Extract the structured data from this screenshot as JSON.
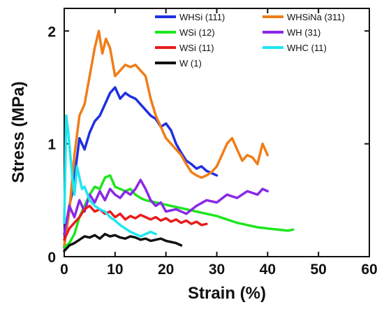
{
  "chart_data": {
    "type": "line",
    "xlabel": "Strain (%)",
    "ylabel": "Stress (MPa)",
    "xlim": [
      0,
      60
    ],
    "ylim": [
      0,
      2.2
    ],
    "xticks": [
      0,
      10,
      20,
      30,
      40,
      50,
      60
    ],
    "yticks": [
      0,
      1,
      2
    ],
    "grid": false,
    "legend_position": "top-right",
    "series": [
      {
        "name": "WHSi (111)",
        "color": "#1f2fe0",
        "x": [
          0,
          0.5,
          1,
          1.5,
          2,
          3,
          4,
          5,
          6,
          7,
          8,
          9,
          10,
          11,
          12,
          13,
          14,
          15,
          16,
          17,
          18,
          19,
          20,
          21,
          22,
          23,
          24,
          25,
          26,
          27,
          28,
          29,
          30
        ],
        "y": [
          0.08,
          0.3,
          0.45,
          0.55,
          0.7,
          1.05,
          0.95,
          1.1,
          1.2,
          1.25,
          1.35,
          1.45,
          1.5,
          1.4,
          1.45,
          1.42,
          1.4,
          1.35,
          1.3,
          1.25,
          1.22,
          1.15,
          1.18,
          1.12,
          1.0,
          0.92,
          0.85,
          0.82,
          0.78,
          0.8,
          0.76,
          0.74,
          0.72
        ]
      },
      {
        "name": "WHSiNa (311)",
        "color": "#f07d18",
        "x": [
          0,
          1,
          2,
          3,
          4,
          5,
          6,
          6.8,
          7.5,
          8.2,
          9,
          10,
          11,
          12,
          13,
          14,
          15,
          16,
          17,
          18,
          19,
          20,
          21,
          22,
          23,
          24,
          25,
          26,
          27,
          28,
          29,
          30,
          31,
          32,
          33,
          34,
          35,
          36,
          37,
          38,
          39,
          40
        ],
        "y": [
          0.1,
          0.4,
          0.9,
          1.25,
          1.35,
          1.6,
          1.85,
          2.0,
          1.8,
          1.93,
          1.85,
          1.6,
          1.65,
          1.7,
          1.68,
          1.7,
          1.65,
          1.6,
          1.4,
          1.25,
          1.15,
          1.05,
          1.0,
          0.95,
          0.9,
          0.82,
          0.75,
          0.72,
          0.7,
          0.72,
          0.75,
          0.8,
          0.9,
          1.0,
          1.05,
          0.95,
          0.85,
          0.9,
          0.88,
          0.82,
          1.0,
          0.9
        ]
      },
      {
        "name": "WSi (12)",
        "color": "#1ee61e",
        "x": [
          0,
          1,
          2,
          3,
          4,
          5,
          6,
          7,
          8,
          9,
          10,
          11,
          12,
          13,
          14,
          15,
          16,
          18,
          20,
          22,
          24,
          26,
          28,
          30,
          32,
          34,
          36,
          38,
          40,
          42,
          44,
          45
        ],
        "y": [
          0.08,
          0.12,
          0.2,
          0.35,
          0.45,
          0.55,
          0.62,
          0.6,
          0.7,
          0.72,
          0.62,
          0.6,
          0.58,
          0.6,
          0.55,
          0.52,
          0.5,
          0.48,
          0.46,
          0.44,
          0.42,
          0.4,
          0.38,
          0.36,
          0.33,
          0.3,
          0.28,
          0.26,
          0.25,
          0.24,
          0.23,
          0.24
        ]
      },
      {
        "name": "WH (31)",
        "color": "#8a28e8",
        "x": [
          0,
          1,
          2,
          3,
          4,
          5,
          6,
          7,
          8,
          9,
          10,
          11,
          12,
          13,
          14,
          15,
          16,
          17,
          18,
          19,
          20,
          22,
          24,
          26,
          28,
          30,
          32,
          34,
          36,
          38,
          39,
          40
        ],
        "y": [
          0.2,
          0.45,
          0.35,
          0.5,
          0.4,
          0.55,
          0.48,
          0.58,
          0.5,
          0.6,
          0.55,
          0.52,
          0.58,
          0.55,
          0.6,
          0.68,
          0.6,
          0.5,
          0.45,
          0.48,
          0.4,
          0.42,
          0.38,
          0.45,
          0.5,
          0.48,
          0.55,
          0.52,
          0.58,
          0.55,
          0.6,
          0.58
        ]
      },
      {
        "name": "WSi (11)",
        "color": "#e81c1c",
        "x": [
          0,
          1,
          2,
          3,
          4,
          5,
          6,
          7,
          8,
          9,
          10,
          11,
          12,
          13,
          14,
          15,
          16,
          17,
          18,
          19,
          20,
          21,
          22,
          23,
          24,
          25,
          26,
          27,
          28
        ],
        "y": [
          0.15,
          0.25,
          0.3,
          0.35,
          0.42,
          0.45,
          0.4,
          0.42,
          0.38,
          0.4,
          0.35,
          0.38,
          0.33,
          0.36,
          0.34,
          0.37,
          0.35,
          0.33,
          0.35,
          0.32,
          0.34,
          0.31,
          0.33,
          0.3,
          0.32,
          0.29,
          0.31,
          0.28,
          0.29
        ]
      },
      {
        "name": "WHC (11)",
        "color": "#1ee6f0",
        "x": [
          0,
          0.4,
          0.8,
          1.2,
          1.6,
          2,
          2.5,
          3,
          3.5,
          4,
          5,
          6,
          7,
          8,
          9,
          10,
          11,
          12,
          13,
          14,
          15,
          16,
          17,
          18
        ],
        "y": [
          0.3,
          1.25,
          1.1,
          0.9,
          0.7,
          0.55,
          0.8,
          0.7,
          0.6,
          0.62,
          0.5,
          0.45,
          0.42,
          0.4,
          0.35,
          0.32,
          0.28,
          0.25,
          0.22,
          0.2,
          0.18,
          0.2,
          0.22,
          0.2
        ]
      },
      {
        "name": "W (1)",
        "color": "#111111",
        "x": [
          0,
          1,
          2,
          3,
          4,
          5,
          6,
          7,
          8,
          9,
          10,
          11,
          12,
          13,
          14,
          15,
          16,
          17,
          18,
          19,
          20,
          21,
          22,
          23
        ],
        "y": [
          0.05,
          0.1,
          0.12,
          0.15,
          0.18,
          0.17,
          0.19,
          0.16,
          0.2,
          0.18,
          0.19,
          0.17,
          0.16,
          0.18,
          0.17,
          0.15,
          0.16,
          0.14,
          0.15,
          0.16,
          0.14,
          0.13,
          0.12,
          0.1
        ]
      }
    ],
    "legend": [
      {
        "label": "WHSi (111)",
        "color": "#1f2fe0"
      },
      {
        "label": "WHSiNa (311)",
        "color": "#f07d18"
      },
      {
        "label": "WSi (12)",
        "color": "#1ee61e"
      },
      {
        "label": "WH (31)",
        "color": "#8a28e8"
      },
      {
        "label": "WSi (11)",
        "color": "#e81c1c"
      },
      {
        "label": "WHC (11)",
        "color": "#1ee6f0"
      },
      {
        "label": "W (1)",
        "color": "#111111"
      }
    ]
  }
}
